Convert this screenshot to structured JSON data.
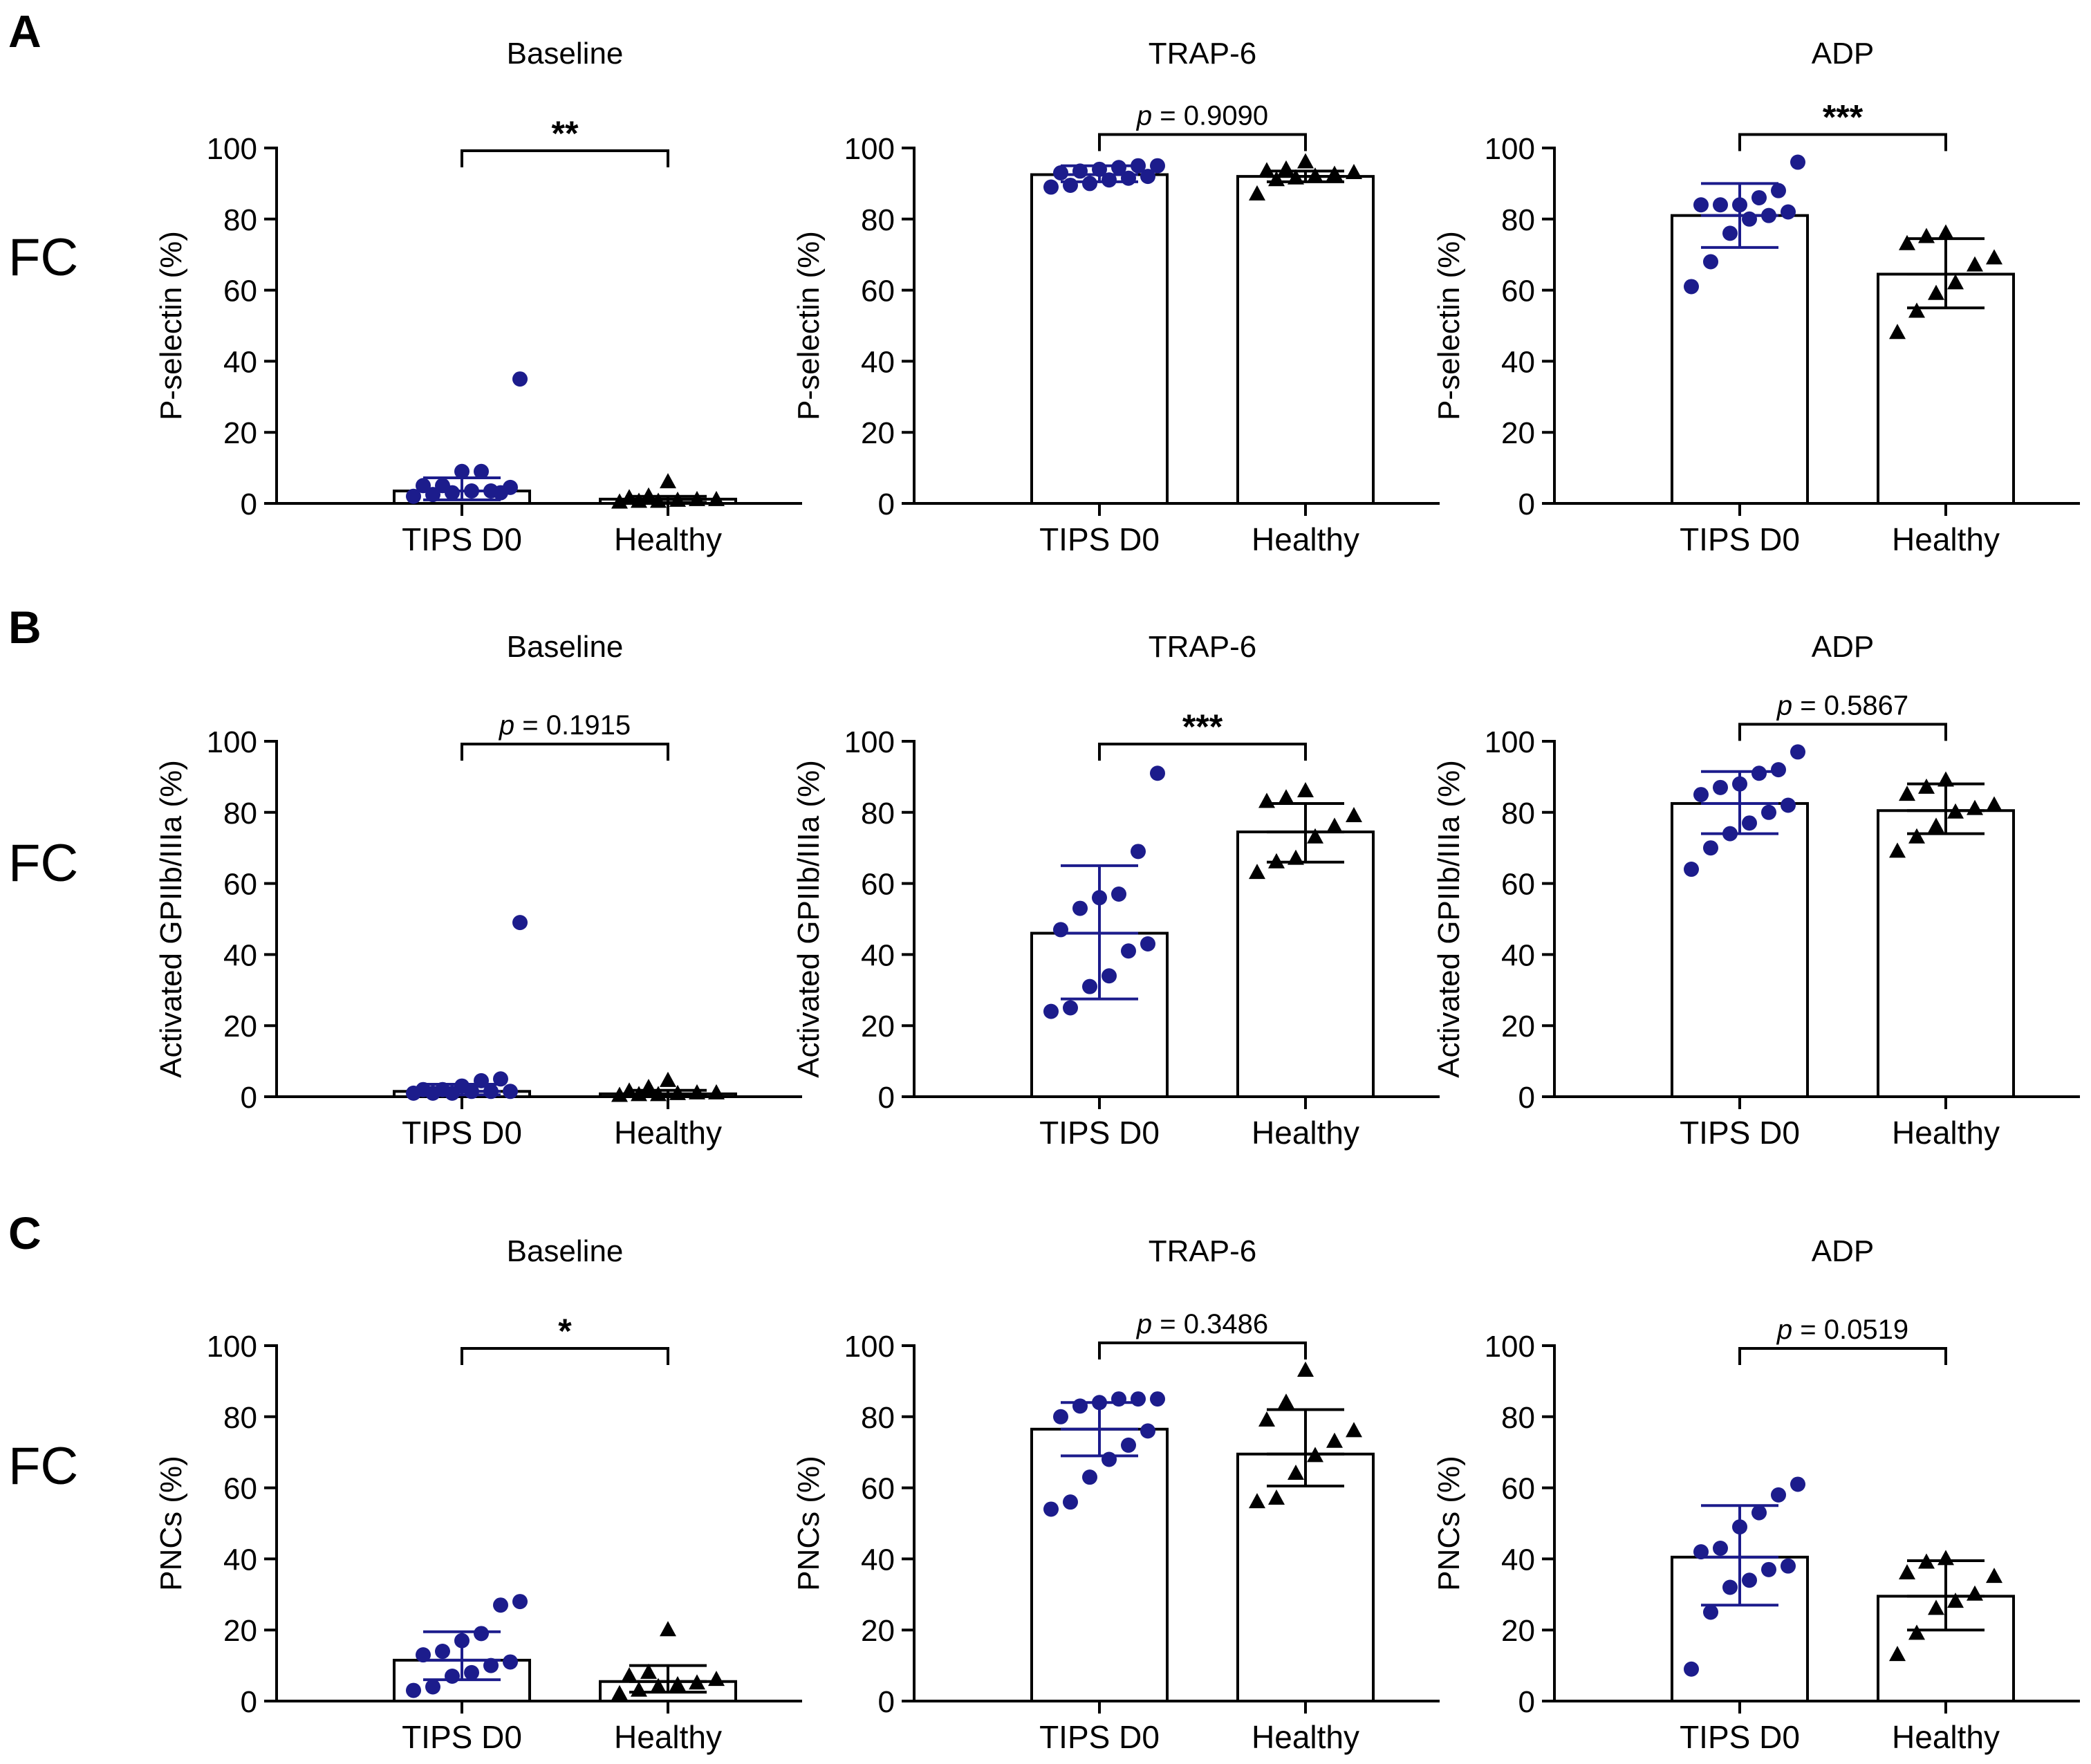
{
  "figure": {
    "row_labels": [
      "A",
      "B",
      "C"
    ],
    "method_labels": [
      "FC",
      "FC",
      "FC"
    ],
    "group_labels": [
      "TIPS D0",
      "Healthy"
    ],
    "colors": {
      "tips": "#1c1c8c",
      "healthy": "#000000",
      "axis": "#000000"
    }
  },
  "chart_data": [
    {
      "id": "A-baseline",
      "type": "bar",
      "title": "Baseline",
      "ylabel": "P-selectin (%)",
      "ylim": [
        0,
        100
      ],
      "yticks": [
        0,
        20,
        40,
        60,
        80,
        100
      ],
      "categories": [
        "TIPS D0",
        "Healthy"
      ],
      "values": [
        3.5,
        1.2
      ],
      "errors": [
        [
          1,
          7.2
        ],
        [
          0.3,
          2
        ]
      ],
      "points": [
        [
          2,
          2.5,
          3,
          3.5,
          3.5,
          4.5,
          5,
          5,
          9,
          9,
          3,
          35
        ],
        [
          0.3,
          0.5,
          0.5,
          0.8,
          1,
          1,
          1.5,
          2,
          6
        ]
      ],
      "significance": {
        "label": "**",
        "kind": "stars"
      }
    },
    {
      "id": "A-trap6",
      "type": "bar",
      "title": "TRAP-6",
      "ylabel": "P-selectin (%)",
      "ylim": [
        0,
        100
      ],
      "yticks": [
        0,
        20,
        40,
        60,
        80,
        100
      ],
      "categories": [
        "TIPS D0",
        "Healthy"
      ],
      "values": [
        92.5,
        92
      ],
      "errors": [
        [
          90.5,
          95
        ],
        [
          90.5,
          93.5
        ]
      ],
      "points": [
        [
          89,
          89.5,
          90,
          91,
          91.5,
          92,
          93,
          93.5,
          94,
          94.5,
          95,
          95
        ],
        [
          87,
          91,
          91.5,
          92,
          92.5,
          93,
          93.5,
          94,
          96
        ]
      ],
      "significance": {
        "label": "0.9090",
        "kind": "p"
      }
    },
    {
      "id": "A-adp",
      "type": "bar",
      "title": "ADP",
      "ylabel": "P-selectin (%)",
      "ylim": [
        0,
        100
      ],
      "yticks": [
        0,
        20,
        40,
        60,
        80,
        100
      ],
      "categories": [
        "TIPS D0",
        "Healthy"
      ],
      "values": [
        81,
        64.5
      ],
      "errors": [
        [
          72,
          90
        ],
        [
          55,
          74.5
        ]
      ],
      "points": [
        [
          61,
          68,
          76,
          80,
          81,
          82,
          84,
          84,
          84,
          86,
          88,
          96
        ],
        [
          48,
          54,
          59,
          62,
          67,
          69,
          73,
          75,
          76
        ]
      ],
      "significance": {
        "label": "***",
        "kind": "stars"
      }
    },
    {
      "id": "B-baseline",
      "type": "bar",
      "title": "Baseline",
      "ylabel": "Activated GPIIb/IIIa (%)",
      "ylim": [
        0,
        100
      ],
      "yticks": [
        0,
        20,
        40,
        60,
        80,
        100
      ],
      "categories": [
        "TIPS D0",
        "Healthy"
      ],
      "values": [
        1.5,
        0.8
      ],
      "errors": [
        [
          0.5,
          3.5
        ],
        [
          0.2,
          1.8
        ]
      ],
      "points": [
        [
          1,
          1,
          1,
          1.5,
          1.5,
          1.5,
          2,
          2,
          3,
          4.5,
          5,
          49
        ],
        [
          0.3,
          0.5,
          0.5,
          0.8,
          1,
          1,
          1.5,
          2.5,
          4.5
        ]
      ],
      "significance": {
        "label": "0.1915",
        "kind": "p"
      }
    },
    {
      "id": "B-trap6",
      "type": "bar",
      "title": "TRAP-6",
      "ylabel": "Activated GPIIb/IIIa (%)",
      "ylim": [
        0,
        100
      ],
      "yticks": [
        0,
        20,
        40,
        60,
        80,
        100
      ],
      "categories": [
        "TIPS D0",
        "Healthy"
      ],
      "values": [
        46,
        74.5
      ],
      "errors": [
        [
          27.5,
          65
        ],
        [
          66,
          82.5
        ]
      ],
      "points": [
        [
          24,
          25,
          31,
          34,
          41,
          43,
          47,
          53,
          56,
          57,
          69,
          91
        ],
        [
          63,
          66,
          67,
          73,
          76,
          79,
          83,
          84,
          86
        ]
      ],
      "significance": {
        "label": "***",
        "kind": "stars"
      }
    },
    {
      "id": "B-adp",
      "type": "bar",
      "title": "ADP",
      "ylabel": "Activated GPIIb/IIIa (%)",
      "ylim": [
        0,
        100
      ],
      "yticks": [
        0,
        20,
        40,
        60,
        80,
        100
      ],
      "categories": [
        "TIPS D0",
        "Healthy"
      ],
      "values": [
        82.5,
        80.5
      ],
      "errors": [
        [
          74,
          91.5
        ],
        [
          74,
          88
        ]
      ],
      "points": [
        [
          64,
          70,
          74,
          77,
          80,
          82,
          85,
          87,
          88,
          91,
          92,
          97
        ],
        [
          69,
          73,
          76,
          80,
          81,
          82,
          85,
          87,
          89
        ]
      ],
      "significance": {
        "label": "0.5867",
        "kind": "p"
      }
    },
    {
      "id": "C-baseline",
      "type": "bar",
      "title": "Baseline",
      "ylabel": "PNCs (%)",
      "ylim": [
        0,
        100
      ],
      "yticks": [
        0,
        20,
        40,
        60,
        80,
        100
      ],
      "categories": [
        "TIPS D0",
        "Healthy"
      ],
      "values": [
        11.5,
        5.5
      ],
      "errors": [
        [
          6,
          19.5
        ],
        [
          2.5,
          10
        ]
      ],
      "points": [
        [
          3,
          4,
          7,
          8,
          10,
          11,
          13,
          14,
          17,
          19,
          27,
          28
        ],
        [
          2,
          3,
          4,
          4.5,
          5,
          6,
          7,
          8,
          20
        ]
      ],
      "significance": {
        "label": "*",
        "kind": "stars"
      }
    },
    {
      "id": "C-trap6",
      "type": "bar",
      "title": "TRAP-6",
      "ylabel": "PNCs (%)",
      "ylim": [
        0,
        100
      ],
      "yticks": [
        0,
        20,
        40,
        60,
        80,
        100
      ],
      "categories": [
        "TIPS D0",
        "Healthy"
      ],
      "values": [
        76.5,
        69.5
      ],
      "errors": [
        [
          69,
          84
        ],
        [
          60.5,
          82
        ]
      ],
      "points": [
        [
          54,
          56,
          63,
          68,
          72,
          76,
          80,
          83,
          84,
          85,
          85,
          85
        ],
        [
          56,
          57,
          64,
          69,
          73,
          76,
          79,
          84,
          93
        ]
      ],
      "significance": {
        "label": "0.3486",
        "kind": "p"
      }
    },
    {
      "id": "C-adp",
      "type": "bar",
      "title": "ADP",
      "ylabel": "PNCs (%)",
      "ylim": [
        0,
        100
      ],
      "yticks": [
        0,
        20,
        40,
        60,
        80,
        100
      ],
      "categories": [
        "TIPS D0",
        "Healthy"
      ],
      "values": [
        40.5,
        29.5
      ],
      "errors": [
        [
          27,
          55
        ],
        [
          20,
          39.5
        ]
      ],
      "points": [
        [
          9,
          25,
          32,
          34,
          37,
          38,
          42,
          43,
          49,
          53,
          58,
          61
        ],
        [
          13,
          19,
          26,
          28,
          30,
          35,
          36,
          39,
          40
        ]
      ],
      "significance": {
        "label": "0.0519",
        "kind": "p"
      }
    }
  ]
}
